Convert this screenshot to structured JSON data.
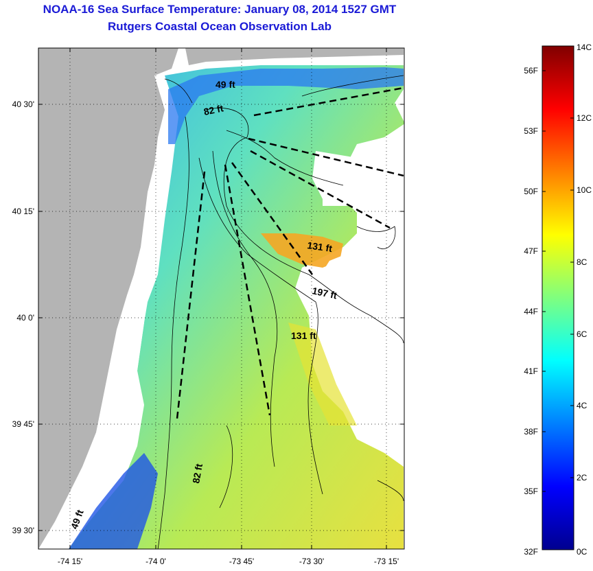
{
  "header": {
    "title": "NOAA-16 Sea Surface Temperature:  January 08, 2014 1527 GMT",
    "subtitle": "Rutgers Coastal Ocean Observation Lab"
  },
  "map": {
    "x_ticks": [
      "-74 15'",
      "-74 0'",
      "-73 45'",
      "-73 30'",
      "-73 15'"
    ],
    "y_ticks": [
      "40 30'",
      "40 15'",
      "40 0'",
      "39 45'",
      "39 30'"
    ],
    "contour_labels": [
      "49 ft",
      "82 ft",
      "131 ft",
      "197 ft",
      "131 ft",
      "82 ft",
      "49 ft"
    ]
  },
  "colorbar": {
    "fahrenheit_labels": [
      "56F",
      "53F",
      "50F",
      "47F",
      "44F",
      "41F",
      "38F",
      "35F",
      "32F"
    ],
    "celsius_labels": [
      "14C",
      "12C",
      "10C",
      "8C",
      "6C",
      "4C",
      "2C",
      "0C"
    ]
  },
  "colors": {
    "land": "#b4b4b4",
    "title": "#1a1ad6"
  }
}
